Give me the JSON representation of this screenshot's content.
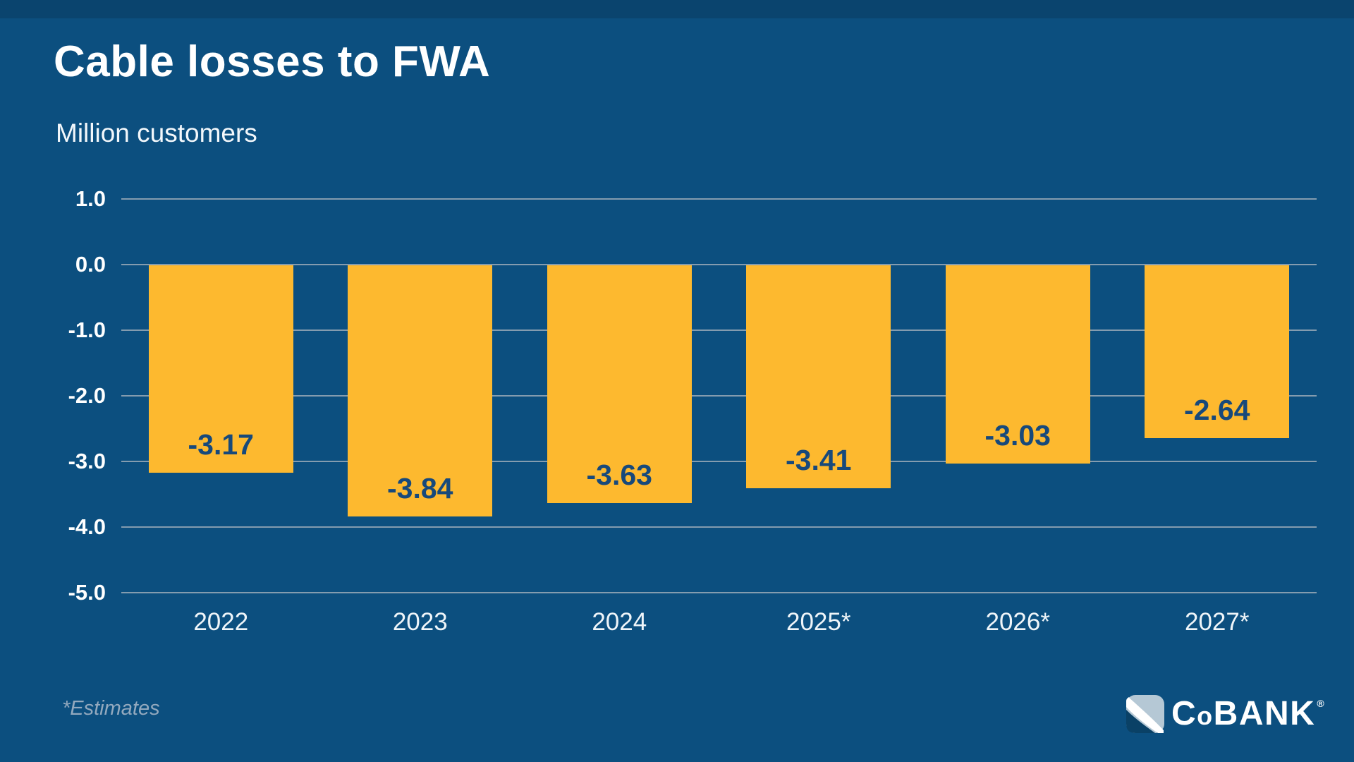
{
  "title": "Cable losses to FWA",
  "subtitle": "Million customers",
  "footnote": "*Estimates",
  "logo": {
    "icon": "cobank-swoosh-icon",
    "c": "C",
    "o": "o",
    "bank": "BANK",
    "reg": "®"
  },
  "colors": {
    "background": "#0C4F7F",
    "bar": "#FDB92F",
    "bar_label": "#17497B",
    "gridline": "#849CAF",
    "axis_text": "#FFFFFF",
    "footnote_text": "#93A9BE",
    "logo_light": "#B5C8D5"
  },
  "chart_data": {
    "type": "bar",
    "title": "Cable losses to FWA",
    "ylabel": "Million customers",
    "categories": [
      "2022",
      "2023",
      "2024",
      "2025*",
      "2026*",
      "2027*"
    ],
    "values": [
      -3.17,
      -3.84,
      -3.63,
      -3.41,
      -3.03,
      -2.64
    ],
    "value_labels": [
      "-3.17",
      "-3.84",
      "-3.63",
      "-3.41",
      "-3.03",
      "-2.64"
    ],
    "ylim": [
      -5.0,
      1.0
    ],
    "yticks": [
      1.0,
      0.0,
      -1.0,
      -2.0,
      -3.0,
      -4.0,
      -5.0
    ],
    "ytick_labels": [
      "1.0",
      "0.0",
      "-1.0",
      "-2.0",
      "-3.0",
      "-4.0",
      "-5.0"
    ],
    "grid": true,
    "legend": "none",
    "bar_color": "#FDB92F",
    "label_position": "inside-bottom"
  }
}
